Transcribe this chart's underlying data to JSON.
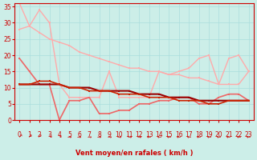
{
  "bg_color": "#cceee8",
  "grid_color": "#aadddd",
  "xlabel": "Vent moyen/en rafales ( km/h )",
  "xlabel_color": "#cc0000",
  "tick_color": "#cc0000",
  "xlim": [
    -0.5,
    23.5
  ],
  "ylim": [
    0,
    36
  ],
  "yticks": [
    0,
    5,
    10,
    15,
    20,
    25,
    30,
    35
  ],
  "xticks": [
    0,
    1,
    2,
    3,
    4,
    5,
    6,
    7,
    8,
    9,
    10,
    11,
    12,
    13,
    14,
    15,
    16,
    17,
    18,
    19,
    20,
    21,
    22,
    23
  ],
  "lines": [
    {
      "comment": "top pale pink line - gradual decline from 36 to 15",
      "x": [
        0,
        1,
        2,
        3,
        4,
        5,
        6,
        7,
        8,
        9,
        10,
        11,
        12,
        13,
        14,
        15,
        16,
        17,
        18,
        19,
        20,
        21,
        22,
        23
      ],
      "y": [
        36,
        29,
        27,
        25,
        24,
        23,
        21,
        20,
        19,
        18,
        17,
        16,
        16,
        15,
        15,
        14,
        14,
        13,
        13,
        12,
        11,
        11,
        11,
        15
      ],
      "color": "#ffaaaa",
      "lw": 1.0,
      "marker": "s",
      "ms": 2.0
    },
    {
      "comment": "second pale pink line - starts ~28, peaks at 34 at x=2, then drops and zigzags back up",
      "x": [
        0,
        1,
        2,
        3,
        4,
        5,
        6,
        7,
        8,
        9,
        10,
        11,
        12,
        13,
        14,
        15,
        16,
        17,
        18,
        19,
        20,
        21,
        22,
        23
      ],
      "y": [
        28,
        29,
        34,
        30,
        11,
        7,
        7,
        7,
        7,
        15,
        7,
        7,
        7,
        7,
        15,
        14,
        15,
        16,
        19,
        20,
        11,
        19,
        20,
        15
      ],
      "color": "#ffaaaa",
      "lw": 1.0,
      "marker": "s",
      "ms": 2.0
    },
    {
      "comment": "medium pink - starts ~19, drops to ~0 at x=4, stays low, minor bumps",
      "x": [
        0,
        1,
        2,
        3,
        4,
        5,
        6,
        7,
        8,
        9,
        10,
        11,
        12,
        13,
        14,
        15,
        16,
        17,
        18,
        19,
        20,
        21,
        22,
        23
      ],
      "y": [
        19,
        15,
        11,
        11,
        0,
        6,
        6,
        7,
        2,
        2,
        3,
        3,
        5,
        5,
        6,
        6,
        7,
        7,
        5,
        5,
        7,
        8,
        8,
        6
      ],
      "color": "#ee6666",
      "lw": 1.2,
      "marker": "s",
      "ms": 2.0
    },
    {
      "comment": "dark red smooth declining line from 11 to 6",
      "x": [
        0,
        1,
        2,
        3,
        4,
        5,
        6,
        7,
        8,
        9,
        10,
        11,
        12,
        13,
        14,
        15,
        16,
        17,
        18,
        19,
        20,
        21,
        22,
        23
      ],
      "y": [
        11,
        11,
        11,
        11,
        11,
        10,
        10,
        10,
        9,
        9,
        9,
        9,
        8,
        8,
        8,
        7,
        7,
        7,
        6,
        6,
        6,
        6,
        6,
        6
      ],
      "color": "#990000",
      "lw": 1.5,
      "marker": "s",
      "ms": 2.0
    },
    {
      "comment": "medium red declining line from 11 to 6",
      "x": [
        0,
        1,
        2,
        3,
        4,
        5,
        6,
        7,
        8,
        9,
        10,
        11,
        12,
        13,
        14,
        15,
        16,
        17,
        18,
        19,
        20,
        21,
        22,
        23
      ],
      "y": [
        11,
        11,
        12,
        12,
        11,
        10,
        10,
        9,
        9,
        9,
        8,
        8,
        8,
        7,
        7,
        7,
        6,
        6,
        6,
        5,
        5,
        6,
        6,
        6
      ],
      "color": "#cc2200",
      "lw": 1.2,
      "marker": "s",
      "ms": 2.0
    }
  ],
  "arrow_labels": [
    "↗",
    "↗",
    "↗",
    "↘",
    "↘",
    "→",
    "→",
    "→",
    "→",
    "→",
    "→",
    "→",
    "→",
    "←",
    "←",
    "←",
    "←",
    "←",
    "←",
    "←",
    "←",
    "←",
    "←",
    "←"
  ]
}
